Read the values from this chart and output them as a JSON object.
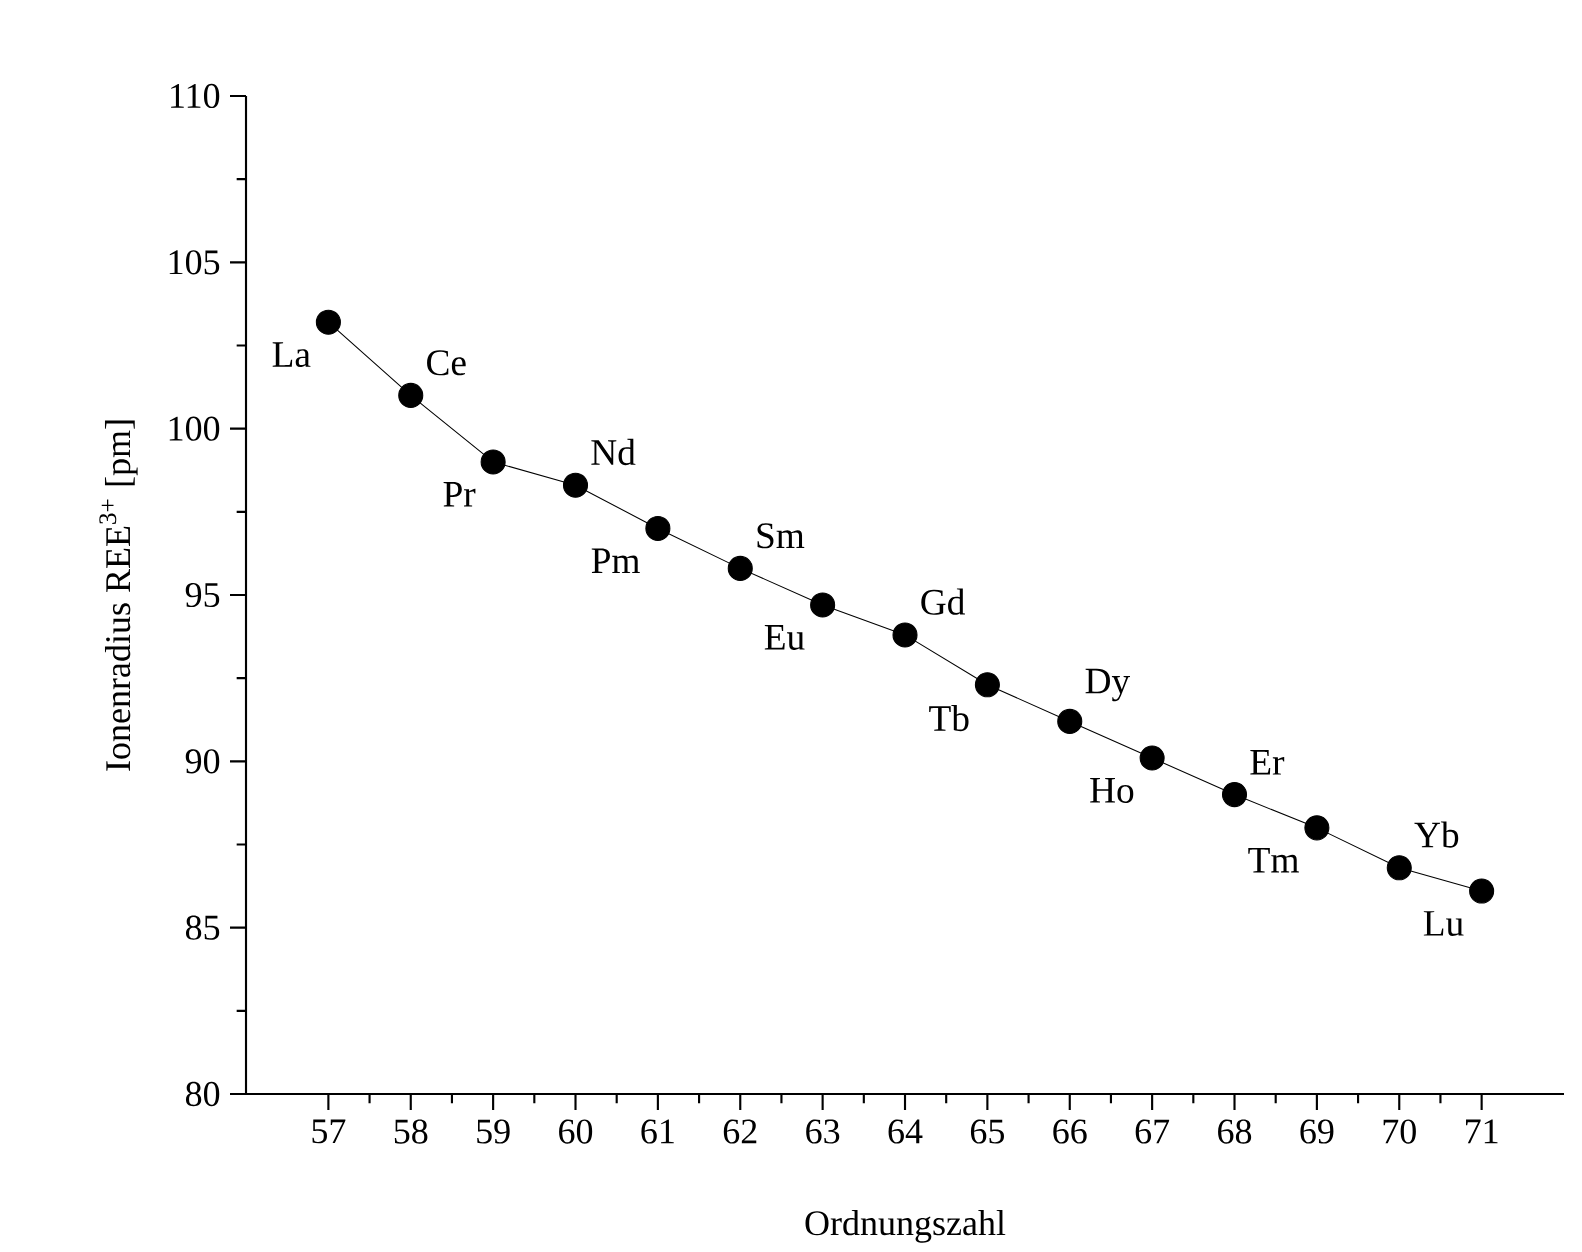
{
  "chart_data": {
    "type": "line",
    "xlabel": "Ordnungszahl",
    "ylabel": "Ionenradius REE$^{3+}$ [pm]",
    "x": [
      57,
      58,
      59,
      60,
      61,
      62,
      63,
      64,
      65,
      66,
      67,
      68,
      69,
      70,
      71
    ],
    "series": [
      {
        "color": "#000000",
        "values": [
          103.2,
          101.0,
          99.0,
          98.3,
          97.0,
          95.8,
          94.7,
          93.8,
          92.3,
          91.2,
          90.1,
          89.0,
          88.0,
          86.8,
          86.1
        ]
      }
    ],
    "xlim": [
      56,
      72
    ],
    "ylim": [
      80,
      110
    ],
    "xticks": [
      57,
      58,
      59,
      60,
      61,
      62,
      63,
      64,
      65,
      66,
      67,
      68,
      69,
      70,
      71
    ],
    "yticks": [
      80,
      85,
      90,
      95,
      100,
      105,
      110
    ],
    "marker": "circle",
    "line_style": "solid",
    "annotations": [
      {
        "text": "La",
        "x": 57,
        "y": 103.2
      },
      {
        "text": "Ce",
        "x": 58,
        "y": 101.0
      },
      {
        "text": "Pr",
        "x": 59,
        "y": 99.0
      },
      {
        "text": "Nd",
        "x": 60,
        "y": 98.3
      },
      {
        "text": "Pm",
        "x": 61,
        "y": 97.0
      },
      {
        "text": "Sm",
        "x": 62,
        "y": 95.8
      },
      {
        "text": "Eu",
        "x": 63,
        "y": 94.7
      },
      {
        "text": "Gd",
        "x": 64,
        "y": 93.8
      },
      {
        "text": "Tb",
        "x": 65,
        "y": 92.3
      },
      {
        "text": "Dy",
        "x": 66,
        "y": 91.2
      },
      {
        "text": "Ho",
        "x": 67,
        "y": 90.1
      },
      {
        "text": "Er",
        "x": 68,
        "y": 89.0
      },
      {
        "text": "Tm",
        "x": 69,
        "y": 88.0
      },
      {
        "text": "Yb",
        "x": 70,
        "y": 86.8
      },
      {
        "text": "Lu",
        "x": 71,
        "y": 86.1
      }
    ]
  }
}
